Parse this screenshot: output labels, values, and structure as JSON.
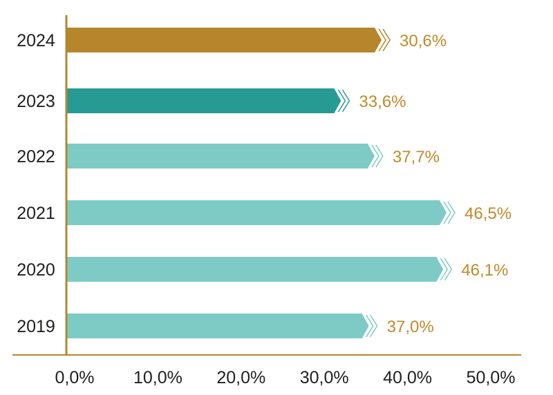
{
  "chart_data": {
    "type": "bar",
    "orientation": "horizontal",
    "categories": [
      "2024",
      "2023",
      "2022",
      "2021",
      "2020",
      "2019"
    ],
    "values": [
      30.6,
      33.6,
      37.7,
      46.5,
      46.1,
      37.0
    ],
    "value_labels": [
      "30,6%",
      "33,6%",
      "37,7%",
      "46,5%",
      "46,1%",
      "37,0%"
    ],
    "bar_colors": [
      "#b5862c",
      "#279b93",
      "#7ecbc6",
      "#7ecbc6",
      "#7ecbc6",
      "#7ecbc6"
    ],
    "label_color": "#c08a2a",
    "axis_color": "#b5862c",
    "xlim": [
      0,
      50
    ],
    "xticks": [
      "0,0%",
      "10,0%",
      "20,0%",
      "30,0%",
      "40,0%",
      "50,0%"
    ],
    "title": "",
    "xlabel": "",
    "ylabel": "",
    "grid": false,
    "legend": "none"
  }
}
